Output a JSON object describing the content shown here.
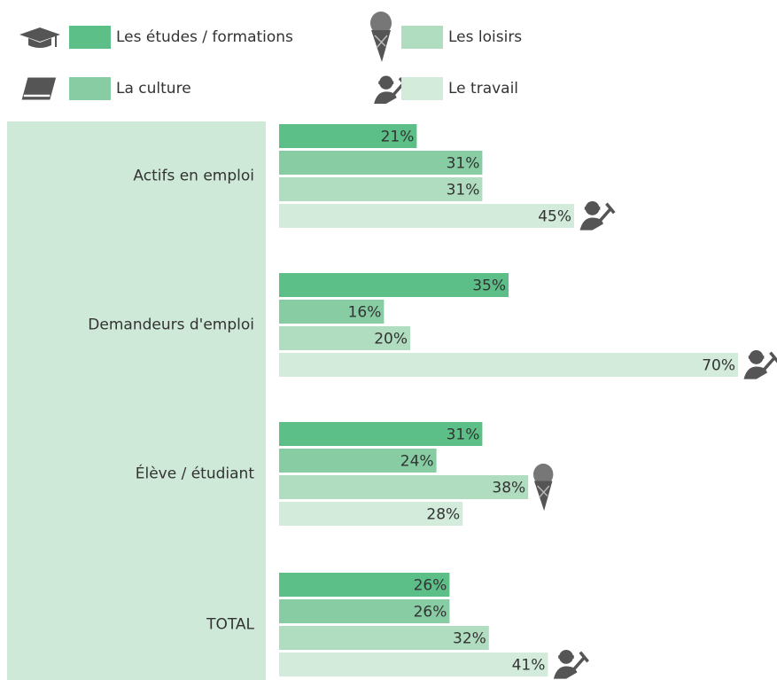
{
  "chart_data": {
    "type": "bar",
    "categories": [
      "Actifs en emploi",
      "Demandeurs d'emploi",
      "Élève / étudiant",
      "TOTAL"
    ],
    "series": [
      {
        "name": "Les études / formations",
        "color": "#5cbf87",
        "values": [
          21,
          35,
          31,
          26
        ],
        "value_labels": [
          "21%",
          "35%",
          "31%",
          "26%"
        ]
      },
      {
        "name": "La culture",
        "color": "#87cca3",
        "values": [
          31,
          16,
          24,
          26
        ],
        "value_labels": [
          "31%",
          "16%",
          "24%",
          "26%"
        ]
      },
      {
        "name": "Les loisirs",
        "color": "#b0dcbf",
        "values": [
          31,
          20,
          38,
          32
        ],
        "value_labels": [
          "31%",
          "20%",
          "38%",
          "32%"
        ]
      },
      {
        "name": "Le travail",
        "color": "#d2ebdb",
        "values": [
          45,
          70,
          28,
          41
        ],
        "value_labels": [
          "45%",
          "70%",
          "28%",
          "41%"
        ]
      }
    ]
  }
}
